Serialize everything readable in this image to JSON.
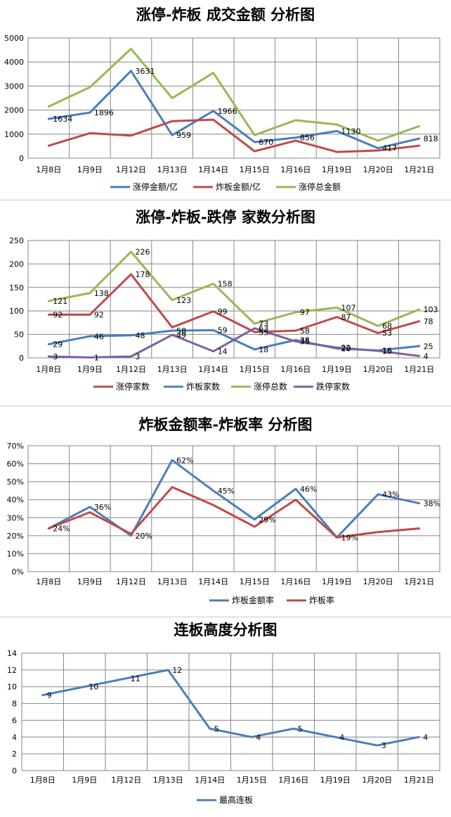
{
  "chart_data": [
    {
      "type": "line",
      "title": "涨停-炸板 成交金额 分析图",
      "categories": [
        "1月8日",
        "1月9日",
        "1月12日",
        "1月13日",
        "1月14日",
        "1月15日",
        "1月16日",
        "1月19日",
        "1月20日",
        "1月21日"
      ],
      "ylim": [
        0,
        5000
      ],
      "yticks": [
        "0",
        "1000",
        "2000",
        "3000",
        "4000",
        "5000"
      ],
      "grid": true,
      "legend_position": "bottom",
      "series": [
        {
          "name": "涨停金额/亿",
          "color": "#4a7ebb",
          "values": [
            1634,
            1896,
            3631,
            959,
            1966,
            670,
            856,
            1130,
            417,
            818
          ],
          "labels": [
            "1634",
            "1896",
            "3631",
            "959",
            "1966",
            "670",
            "856",
            "1130",
            "417",
            "818"
          ]
        },
        {
          "name": "炸板金额/亿",
          "color": "#be4b48",
          "values": [
            520,
            1040,
            940,
            1540,
            1600,
            290,
            730,
            260,
            320,
            520
          ],
          "labels": []
        },
        {
          "name": "涨停总金额",
          "color": "#98b954",
          "values": [
            2150,
            2950,
            4550,
            2500,
            3550,
            960,
            1580,
            1400,
            730,
            1330
          ],
          "labels": []
        }
      ]
    },
    {
      "type": "line",
      "title": "涨停-炸板-跌停 家数分析图",
      "categories": [
        "1月8日",
        "1月9日",
        "1月12日",
        "1月13日",
        "1月14日",
        "1月15日",
        "1月16日",
        "1月19日",
        "1月20日",
        "1月21日"
      ],
      "ylim": [
        0,
        250
      ],
      "yticks": [
        "0",
        "50",
        "100",
        "150",
        "200",
        "250"
      ],
      "grid": true,
      "legend_position": "bottom",
      "series": [
        {
          "name": "涨停家数",
          "color": "#be4b48",
          "values": [
            92,
            92,
            178,
            65,
            99,
            55,
            58,
            87,
            53,
            78
          ],
          "labels": [
            "92",
            "92",
            "178",
            "",
            "99",
            "55",
            "58",
            "87",
            "53",
            "78"
          ]
        },
        {
          "name": "炸板家数",
          "color": "#4a7ebb",
          "values": [
            29,
            46,
            48,
            58,
            59,
            18,
            38,
            20,
            16,
            25
          ],
          "labels": [
            "29",
            "46",
            "48",
            "58",
            "59",
            "18",
            "38",
            "20",
            "16",
            "25"
          ]
        },
        {
          "name": "涨停总数",
          "color": "#98b954",
          "values": [
            121,
            138,
            226,
            123,
            158,
            73,
            97,
            107,
            68,
            103
          ],
          "labels": [
            "121",
            "138",
            "226",
            "123",
            "158",
            "73",
            "97",
            "107",
            "68",
            "103"
          ]
        },
        {
          "name": "跌停家数",
          "color": "#7d60a0",
          "values": [
            3,
            1,
            3,
            49,
            14,
            63,
            35,
            22,
            15,
            4
          ],
          "labels": [
            "3",
            "1",
            "3",
            "49",
            "14",
            "63",
            "35",
            "22",
            "15",
            "4"
          ]
        }
      ]
    },
    {
      "type": "line",
      "title": "炸板金额率-炸板率 分析图",
      "categories": [
        "1月8日",
        "1月9日",
        "1月12日",
        "1月13日",
        "1月14日",
        "1月15日",
        "1月16日",
        "1月19日",
        "1月20日",
        "1月21日"
      ],
      "ylim": [
        0,
        70
      ],
      "yticks": [
        "0%",
        "10%",
        "20%",
        "30%",
        "40%",
        "50%",
        "60%",
        "70%"
      ],
      "grid": true,
      "legend_position": "bottom",
      "series": [
        {
          "name": "炸板金额率",
          "color": "#4a7ebb",
          "values": [
            24,
            36,
            20,
            62,
            45,
            29,
            46,
            19,
            43,
            38
          ],
          "labels": [
            "24%",
            "36%",
            "20%",
            "62%",
            "45%",
            "29%",
            "46%",
            "19%",
            "43%",
            "38%"
          ]
        },
        {
          "name": "炸板率",
          "color": "#be4b48",
          "values": [
            24,
            33,
            21,
            47,
            37,
            25,
            40,
            19,
            22,
            24
          ],
          "labels": []
        }
      ]
    },
    {
      "type": "line",
      "title": "连板高度分析图",
      "categories": [
        "1月8日",
        "1月9日",
        "1月12日",
        "1月13日",
        "1月14日",
        "1月15日",
        "1月16日",
        "1月19日",
        "1月20日",
        "1月21日"
      ],
      "ylim": [
        0,
        14
      ],
      "yticks": [
        "0",
        "2",
        "4",
        "6",
        "8",
        "10",
        "12",
        "14"
      ],
      "grid": true,
      "legend_position": "bottom",
      "series": [
        {
          "name": "最高连板",
          "color": "#4a7ebb",
          "values": [
            9,
            10,
            11,
            12,
            5,
            4,
            5,
            4,
            3,
            4
          ],
          "labels": [
            "9",
            "10",
            "11",
            "12",
            "5",
            "4",
            "5",
            "4",
            "3",
            "4"
          ]
        }
      ]
    }
  ]
}
